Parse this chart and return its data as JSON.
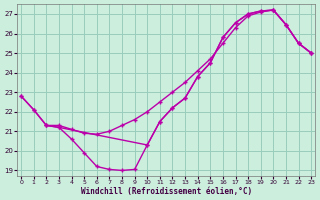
{
  "xlabel": "Windchill (Refroidissement éolien,°C)",
  "bg_color": "#cceedd",
  "grid_color": "#99ccbb",
  "line_color": "#bb00aa",
  "xlim": [
    -0.3,
    23.3
  ],
  "ylim": [
    18.7,
    27.5
  ],
  "yticks": [
    19,
    20,
    21,
    22,
    23,
    24,
    25,
    26,
    27
  ],
  "xticks": [
    0,
    1,
    2,
    3,
    4,
    5,
    6,
    7,
    8,
    9,
    10,
    11,
    12,
    13,
    14,
    15,
    16,
    17,
    18,
    19,
    20,
    21,
    22,
    23
  ],
  "line_bottom_x": [
    0,
    1,
    2,
    3,
    4,
    5,
    6,
    7,
    8,
    9,
    10,
    11,
    12,
    13,
    14,
    15,
    16,
    17,
    18,
    19,
    20,
    21,
    22,
    23
  ],
  "line_bottom_y": [
    22.8,
    22.1,
    21.3,
    21.2,
    20.6,
    19.9,
    19.2,
    19.05,
    19.0,
    19.05,
    20.3,
    21.5,
    22.2,
    22.7,
    23.8,
    24.5,
    25.8,
    26.55,
    27.0,
    27.15,
    27.2,
    26.45,
    25.5,
    25.0
  ],
  "line_top_x": [
    0,
    1,
    2,
    3,
    4,
    5,
    6,
    7,
    8,
    9,
    10,
    11,
    12,
    13,
    14,
    15,
    16,
    17,
    18,
    19,
    20,
    21,
    22,
    23
  ],
  "line_top_y": [
    22.8,
    22.1,
    21.3,
    21.3,
    21.1,
    20.9,
    20.85,
    21.0,
    21.3,
    21.6,
    22.0,
    22.5,
    23.0,
    23.5,
    24.1,
    24.7,
    25.5,
    26.3,
    26.9,
    27.1,
    27.2,
    26.45,
    25.5,
    25.0
  ],
  "line_diag_x": [
    2,
    3,
    10,
    11,
    12,
    13,
    14,
    15,
    16,
    17,
    18,
    19,
    20,
    21,
    22,
    23
  ],
  "line_diag_y": [
    21.3,
    21.2,
    20.3,
    21.5,
    22.2,
    22.7,
    23.8,
    24.5,
    25.8,
    26.55,
    27.0,
    27.15,
    27.2,
    26.45,
    25.5,
    25.0
  ]
}
